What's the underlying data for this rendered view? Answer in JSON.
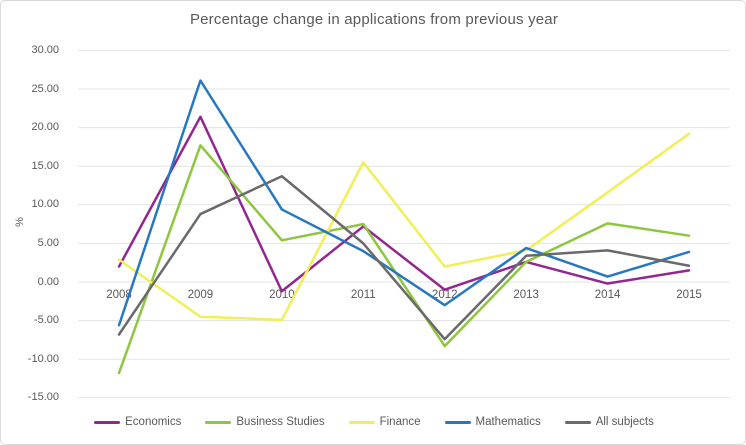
{
  "chart": {
    "title": "Percentage change in applications from previous year",
    "y_axis_title": "%"
  },
  "chart_data": {
    "type": "line",
    "title": "Percentage change in applications from previous year",
    "xlabel": "",
    "ylabel": "%",
    "categories": [
      "2008",
      "2009",
      "2010",
      "2011",
      "2012",
      "2013",
      "2014",
      "2015"
    ],
    "series": [
      {
        "name": "Economics",
        "color": "#93268F",
        "values": [
          2.0,
          21.4,
          -1.2,
          7.2,
          -1.0,
          2.6,
          -0.2,
          1.5
        ]
      },
      {
        "name": "Business Studies",
        "color": "#8DC63F",
        "values": [
          -11.8,
          17.7,
          5.4,
          7.5,
          -8.3,
          2.6,
          7.6,
          6.0
        ]
      },
      {
        "name": "Finance",
        "color": "#F2EE55",
        "values": [
          2.9,
          -4.5,
          -4.9,
          15.5,
          2.0,
          4.1,
          11.6,
          19.2
        ]
      },
      {
        "name": "Mathematics",
        "color": "#2778BE",
        "values": [
          -5.6,
          26.1,
          9.4,
          4.0,
          -3.0,
          4.4,
          0.7,
          3.9
        ]
      },
      {
        "name": "All subjects",
        "color": "#6A6A6D",
        "values": [
          -6.8,
          8.8,
          13.7,
          5.0,
          -7.4,
          3.4,
          4.1,
          2.1
        ]
      }
    ],
    "ylim": [
      -15,
      30
    ],
    "ytick_step": 5,
    "ytick_labels": [
      "30.00",
      "25.00",
      "20.00",
      "15.00",
      "10.00",
      "5.00",
      "0.00",
      "-5.00",
      "-10.00",
      "-15.00"
    ],
    "ytick_values": [
      30,
      25,
      20,
      15,
      10,
      5,
      0,
      -5,
      -10,
      -15
    ],
    "grid": "horizontal",
    "gridline_color": "#E3E3E3",
    "legend_position": "bottom",
    "text_color": "#595959"
  }
}
